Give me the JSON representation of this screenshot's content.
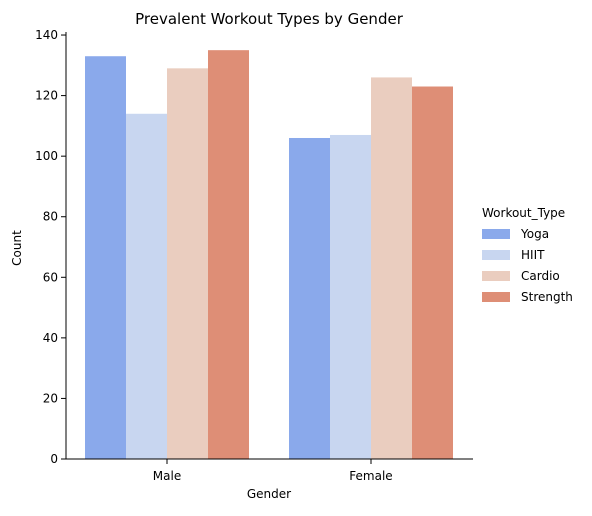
{
  "chart_data": {
    "type": "bar",
    "title": "Prevalent Workout Types by Gender",
    "xlabel": "Gender",
    "ylabel": "Count",
    "categories": [
      "Male",
      "Female"
    ],
    "ylim": [
      0,
      141
    ],
    "yticks": [
      0,
      20,
      40,
      60,
      80,
      100,
      120,
      140
    ],
    "grid": false,
    "legend": {
      "title": "Workout_Type",
      "placement": "right"
    },
    "series": [
      {
        "name": "Yoga",
        "values": [
          133,
          106
        ],
        "color": "#8aa9eb"
      },
      {
        "name": "HIIT",
        "values": [
          114,
          107
        ],
        "color": "#c8d6f0"
      },
      {
        "name": "Cardio",
        "values": [
          129,
          126
        ],
        "color": "#eacdbf"
      },
      {
        "name": "Strength",
        "values": [
          135,
          123
        ],
        "color": "#de8e76"
      }
    ]
  }
}
